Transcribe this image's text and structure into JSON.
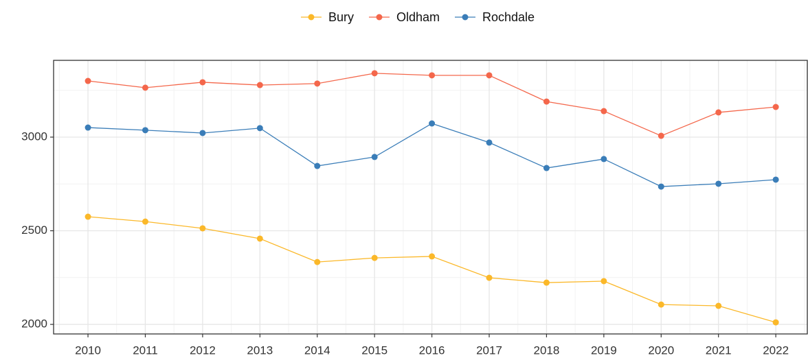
{
  "chart_data": {
    "type": "line",
    "x": [
      2010,
      2011,
      2012,
      2013,
      2014,
      2015,
      2016,
      2017,
      2018,
      2019,
      2020,
      2021,
      2022
    ],
    "series": [
      {
        "name": "Bury",
        "color": "#fbb829",
        "values": [
          2575,
          2549,
          2513,
          2458,
          2333,
          2355,
          2363,
          2249,
          2223,
          2231,
          2106,
          2099,
          2011
        ]
      },
      {
        "name": "Oldham",
        "color": "#f4674b",
        "values": [
          3300,
          3264,
          3293,
          3278,
          3286,
          3341,
          3330,
          3330,
          3190,
          3139,
          3007,
          3132,
          3161
        ]
      },
      {
        "name": "Rochdale",
        "color": "#3a7db8",
        "values": [
          3051,
          3037,
          3022,
          3048,
          2846,
          2894,
          3073,
          2971,
          2835,
          2883,
          2736,
          2751,
          2773
        ]
      }
    ],
    "xlim": [
      2009.4,
      2022.55
    ],
    "xticks": [
      2010,
      2011,
      2012,
      2013,
      2014,
      2015,
      2016,
      2017,
      2018,
      2019,
      2020,
      2021,
      2022
    ],
    "ylim": [
      1949,
      3410
    ],
    "yticks": [
      2000,
      2500,
      3000
    ],
    "grid": true,
    "legend": "top"
  }
}
